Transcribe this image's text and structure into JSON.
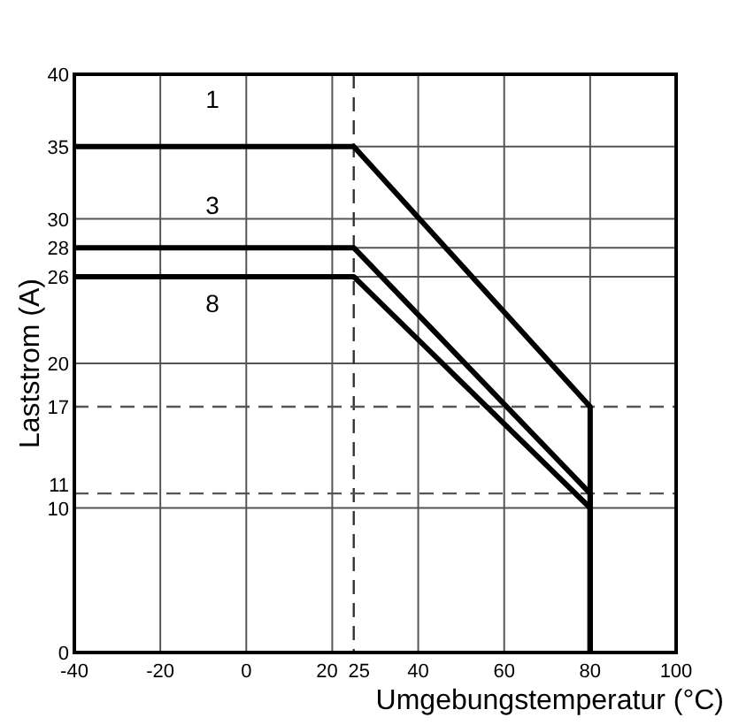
{
  "chart_data": {
    "type": "line",
    "xlabel": "Umgebungstemperatur (°C)",
    "ylabel": "Laststrom (A)",
    "xlim": [
      -40,
      100
    ],
    "xticks": [
      -40,
      -20,
      0,
      20,
      25,
      40,
      60,
      80,
      100
    ],
    "ylim": [
      0,
      40
    ],
    "yticks": [
      0,
      10,
      20,
      26,
      28,
      30,
      35,
      40
    ],
    "grid": true,
    "marker": "none",
    "line_style": "solid",
    "series": [
      {
        "name": "1",
        "color": "#000000",
        "x": [
          -40,
          25,
          80,
          80
        ],
        "values": [
          35,
          35,
          17,
          0
        ]
      },
      {
        "name": "3",
        "color": "#000000",
        "x": [
          -40,
          25,
          80,
          80
        ],
        "values": [
          28,
          28,
          11,
          0
        ]
      },
      {
        "name": "8",
        "color": "#000000",
        "x": [
          -40,
          25,
          80,
          80
        ],
        "values": [
          26,
          26,
          10,
          0
        ]
      }
    ],
    "ref_lines": [
      {
        "axis": "x",
        "value": 25,
        "color": "#333333",
        "line_style": "dashed"
      },
      {
        "axis": "y",
        "value": 17,
        "label": "17",
        "color": "#555555",
        "line_style": "dashed"
      },
      {
        "axis": "y",
        "value": 11,
        "label": "11",
        "color": "#555555",
        "line_style": "dashed"
      }
    ]
  }
}
